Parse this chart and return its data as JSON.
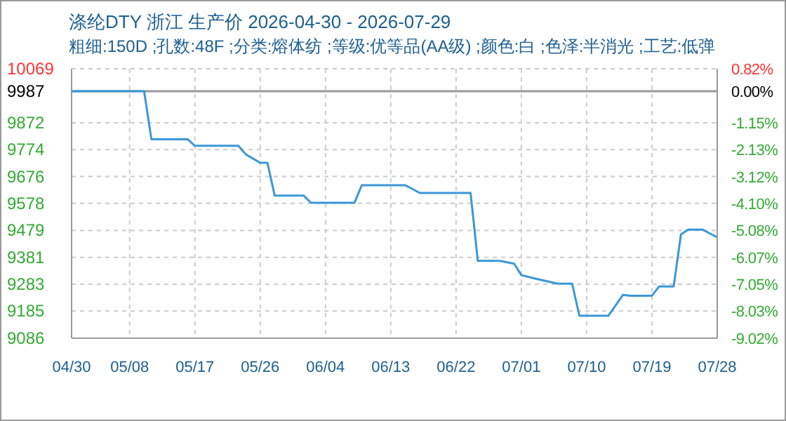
{
  "chart_data": {
    "type": "line",
    "title": "涤纶DTY 浙江 生产价 2026-04-30 - 2026-07-29",
    "subtitle": "粗细:150D ;孔数:48F ;分类:熔体纺 ;等级:优等品(AA级) ;颜色:白 ;色泽:半消光 ;工艺:低弹",
    "x": [
      "--04-30",
      "--05-10",
      "--05-11",
      "--05-16",
      "--05-17",
      "--05-23",
      "--05-24",
      "--05-26",
      "--05-27",
      "--05-28",
      "--06-01",
      "--06-02",
      "--06-08",
      "--06-09",
      "--06-15",
      "--06-17",
      "--06-24",
      "--06-25",
      "--06-28",
      "--06-30",
      "--07-01",
      "--07-03",
      "--07-06",
      "--07-08",
      "--07-09",
      "--07-13",
      "--07-15",
      "--07-16",
      "--07-19",
      "--07-20",
      "--07-22",
      "--07-23",
      "--07-24",
      "--07-26",
      "--07-28"
    ],
    "series": [
      {
        "color": "#3a98d8",
        "values": [
          9987,
          9987,
          9812,
          9812,
          9788,
          9788,
          9757,
          9726,
          9726,
          9606,
          9606,
          9580,
          9580,
          9644,
          9644,
          9616,
          9616,
          9368,
          9368,
          9358,
          9316,
          9303,
          9285,
          9285,
          9168,
          9168,
          9244,
          9241,
          9241,
          9275,
          9275,
          9465,
          9482,
          9482,
          9454
        ]
      }
    ],
    "xlim": [
      "--04-30",
      "--07-28"
    ],
    "xticks": [
      {
        "value": "--04-30",
        "label": "04/30"
      },
      {
        "value": "--05-08",
        "label": "05/08"
      },
      {
        "value": "--05-17",
        "label": "05/17"
      },
      {
        "value": "--05-26",
        "label": "05/26"
      },
      {
        "value": "--06-04",
        "label": "06/04"
      },
      {
        "value": "--06-13",
        "label": "06/13"
      },
      {
        "value": "--06-22",
        "label": "06/22"
      },
      {
        "value": "--07-01",
        "label": "07/01"
      },
      {
        "value": "--07-10",
        "label": "07/10"
      },
      {
        "value": "--07-19",
        "label": "07/19"
      },
      {
        "value": "--07-28",
        "label": "07/28"
      }
    ],
    "ylim": [
      9086,
      10069
    ],
    "yticks": [
      9086,
      9185,
      9283,
      9381,
      9479,
      9578,
      9676,
      9774,
      9872,
      9987,
      10069
    ],
    "y2lim": [
      -9.02,
      0.82
    ],
    "y2ticks": [
      {
        "value": -9.02,
        "label": "-9.02%"
      },
      {
        "value": -8.03,
        "label": "-8.03%"
      },
      {
        "value": -7.05,
        "label": "-7.05%"
      },
      {
        "value": -6.07,
        "label": "-6.07%"
      },
      {
        "value": -5.08,
        "label": "-5.08%"
      },
      {
        "value": -4.1,
        "label": "-4.10%"
      },
      {
        "value": -3.12,
        "label": "-3.12%"
      },
      {
        "value": -2.13,
        "label": "-2.13%"
      },
      {
        "value": -1.15,
        "label": "-1.15%"
      },
      {
        "value": 0,
        "label": "0.00%"
      },
      {
        "value": 0.82,
        "label": "0.82%"
      }
    ],
    "ref_lines": [
      {
        "axis": "y",
        "value": 9987,
        "color": "#999999"
      }
    ],
    "grid": true,
    "marker": "none",
    "line_style": "solid"
  }
}
